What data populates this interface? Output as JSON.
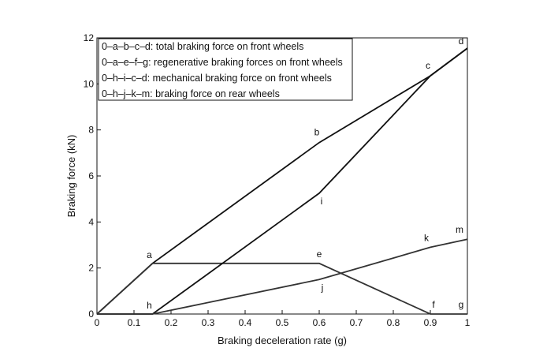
{
  "chart_data": {
    "type": "line",
    "title": "",
    "xlabel": "Braking deceleration rate (g)",
    "ylabel": "Braking force (kN)",
    "xlim": [
      0,
      1
    ],
    "ylim": [
      0,
      12
    ],
    "x_ticks": [
      "0",
      "0.1",
      "0.2",
      "0.3",
      "0.4",
      "0.5",
      "0.6",
      "0.7",
      "0.8",
      "0.9",
      "1"
    ],
    "y_ticks": [
      "0",
      "2",
      "4",
      "6",
      "8",
      "10",
      "12"
    ],
    "grid": false,
    "legend_position": "top-left",
    "legend": [
      "0–a–b–c–d: total braking force on front wheels",
      "0–a–e–f–g: regenerative braking forces on front wheels",
      "0–h–i–c–d: mechanical braking force on front wheels",
      "0–h–j–k–m: braking force on rear wheels"
    ],
    "points": [
      {
        "label": "a",
        "x": 0.15,
        "y": 2.2
      },
      {
        "label": "b",
        "x": 0.6,
        "y": 7.45
      },
      {
        "label": "c",
        "x": 0.9,
        "y": 10.35
      },
      {
        "label": "d",
        "x": 1.0,
        "y": 11.55
      },
      {
        "label": "e",
        "x": 0.6,
        "y": 2.2
      },
      {
        "label": "f",
        "x": 0.9,
        "y": 0.0
      },
      {
        "label": "g",
        "x": 1.0,
        "y": 0.0
      },
      {
        "label": "h",
        "x": 0.15,
        "y": 0.0
      },
      {
        "label": "i",
        "x": 0.6,
        "y": 5.25
      },
      {
        "label": "j",
        "x": 0.6,
        "y": 1.5
      },
      {
        "label": "k",
        "x": 0.9,
        "y": 2.9
      },
      {
        "label": "m",
        "x": 1.0,
        "y": 3.25
      }
    ],
    "series": [
      {
        "path": [
          "0",
          "a",
          "b",
          "c",
          "d"
        ],
        "x": [
          0,
          0.15,
          0.6,
          0.9,
          1.0
        ],
        "y": [
          0,
          2.2,
          7.45,
          10.35,
          11.55
        ],
        "color": "#111111"
      },
      {
        "path": [
          "0",
          "a",
          "e",
          "f",
          "g"
        ],
        "x": [
          0,
          0.15,
          0.6,
          0.9,
          1.0
        ],
        "y": [
          0,
          2.2,
          2.2,
          0.0,
          0.0
        ],
        "color": "#333333"
      },
      {
        "path": [
          "0",
          "h",
          "i",
          "c",
          "d"
        ],
        "x": [
          0,
          0.15,
          0.6,
          0.9,
          1.0
        ],
        "y": [
          0,
          0.0,
          5.25,
          10.35,
          11.55
        ],
        "color": "#111111"
      },
      {
        "path": [
          "0",
          "h",
          "j",
          "k",
          "m"
        ],
        "x": [
          0,
          0.15,
          0.6,
          0.9,
          1.0
        ],
        "y": [
          0,
          0.0,
          1.5,
          2.9,
          3.25
        ],
        "color": "#333333"
      }
    ]
  }
}
